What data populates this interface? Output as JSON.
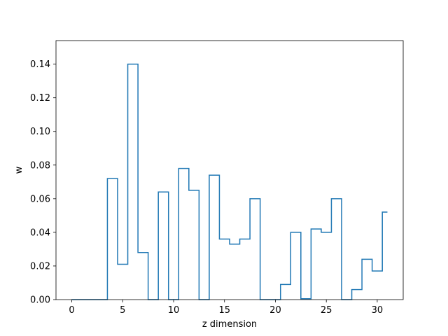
{
  "chart_data": {
    "type": "line",
    "drawstyle": "steps-mid",
    "xlabel": "z dimension",
    "ylabel": "w",
    "xlim": [
      -1.55,
      32.55
    ],
    "ylim": [
      0,
      0.154
    ],
    "xticks": [
      0,
      5,
      10,
      15,
      20,
      25,
      30
    ],
    "yticks": [
      0.0,
      0.02,
      0.04,
      0.06,
      0.08,
      0.1,
      0.12,
      0.14
    ],
    "xtick_labels": [
      "0",
      "5",
      "10",
      "15",
      "20",
      "25",
      "30"
    ],
    "ytick_labels": [
      "0.00",
      "0.02",
      "0.04",
      "0.06",
      "0.08",
      "0.10",
      "0.12",
      "0.14"
    ],
    "grid": false,
    "line_color": "#1f77b4",
    "x": [
      0,
      1,
      2,
      3,
      4,
      5,
      6,
      7,
      8,
      9,
      10,
      11,
      12,
      13,
      14,
      15,
      16,
      17,
      18,
      19,
      20,
      21,
      22,
      23,
      24,
      25,
      26,
      27,
      28,
      29,
      30,
      31
    ],
    "values": [
      0,
      0,
      0,
      0,
      0.072,
      0.021,
      0.14,
      0.028,
      0,
      0.064,
      0,
      0.078,
      0.065,
      0,
      0.074,
      0.036,
      0.033,
      0.036,
      0.06,
      0,
      0,
      0.009,
      0.04,
      0.0005,
      0.042,
      0.04,
      0.06,
      0,
      0.006,
      0.024,
      0.017,
      0.052
    ]
  }
}
